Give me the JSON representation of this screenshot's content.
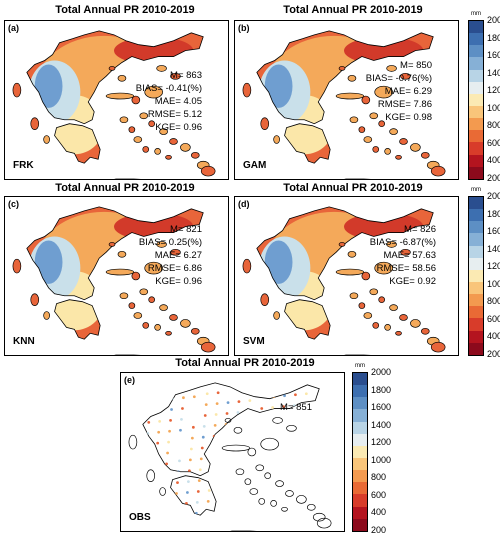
{
  "panels": [
    {
      "id": "a",
      "title": "Total Annual PR 2010-2019",
      "letter": "(a)",
      "model": "FRK",
      "stats": [
        "M= 863",
        "BIAS= -0.41(%)",
        "MAE= 4.05",
        "RMSE= 5.12",
        "KGE= 0.96"
      ]
    },
    {
      "id": "b",
      "title": "Total Annual PR 2010-2019",
      "letter": "(b)",
      "model": "GAM",
      "stats": [
        "M= 850",
        "BIAS= -0.76(%)",
        "MAE= 6.29",
        "RMSE= 7.86",
        "KGE= 0.98"
      ]
    },
    {
      "id": "c",
      "title": "Total Annual PR 2010-2019",
      "letter": "(c)",
      "model": "KNN",
      "stats": [
        "M= 821",
        "BIAS= 0.25(%)",
        "MAE= 6.27",
        "RMSE= 6.86",
        "KGE= 0.96"
      ]
    },
    {
      "id": "d",
      "title": "Total Annual PR 2010-2019",
      "letter": "(d)",
      "model": "SVM",
      "stats": [
        "M= 826",
        "BIAS= -6.87(%)",
        "MAE= 57.63",
        "RMSE= 58.56",
        "KGE= 0.92"
      ]
    },
    {
      "id": "e",
      "title": "Total Annual PR 2010-2019",
      "letter": "(e)",
      "model": "OBS",
      "stats": [
        "M= 851"
      ]
    }
  ],
  "colorbar": {
    "unit": "mm",
    "ticks": [
      "2000",
      "1800",
      "1600",
      "1400",
      "1200",
      "1000",
      "800",
      "600",
      "400",
      "200"
    ],
    "colors": [
      "#2a4e8f",
      "#3d6fb0",
      "#5d8fc4",
      "#86b0d6",
      "#b8d4e6",
      "#e7eef0",
      "#fbeab3",
      "#f9c57a",
      "#f39a4f",
      "#e96a35",
      "#d83c2a",
      "#b4141f",
      "#8c0a1c"
    ]
  },
  "map_colors": {
    "coast": "#000000",
    "ocean": "#ffffff",
    "wet": "#6f9ed0",
    "moderate": "#c9e0ea",
    "dry_light": "#fbe7a9",
    "dry": "#f4a95a",
    "very_dry": "#e8653a",
    "extreme": "#d23a2a"
  }
}
